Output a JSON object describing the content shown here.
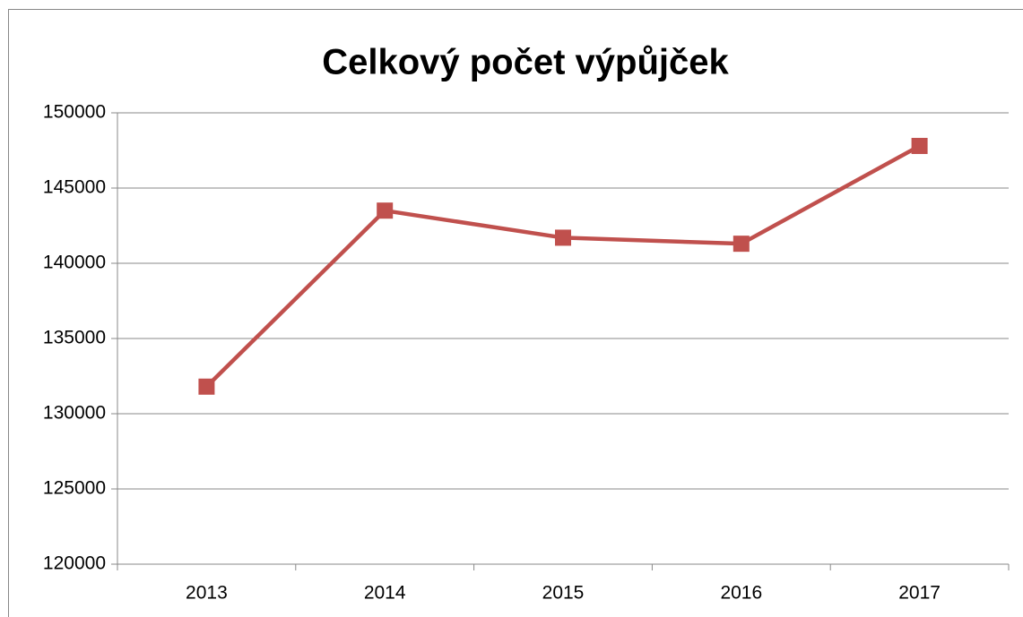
{
  "chart_data": {
    "type": "line",
    "title": "Celkový počet výpůjček",
    "categories": [
      "2013",
      "2014",
      "2015",
      "2016",
      "2017"
    ],
    "series": [
      {
        "name": "Celkový počet výpůjček",
        "color": "#c0504d",
        "values": [
          131800,
          143500,
          141700,
          141300,
          147800
        ]
      }
    ],
    "ylim": [
      120000,
      150000
    ],
    "yticks": [
      120000,
      125000,
      130000,
      135000,
      140000,
      145000,
      150000
    ],
    "grid": true
  }
}
